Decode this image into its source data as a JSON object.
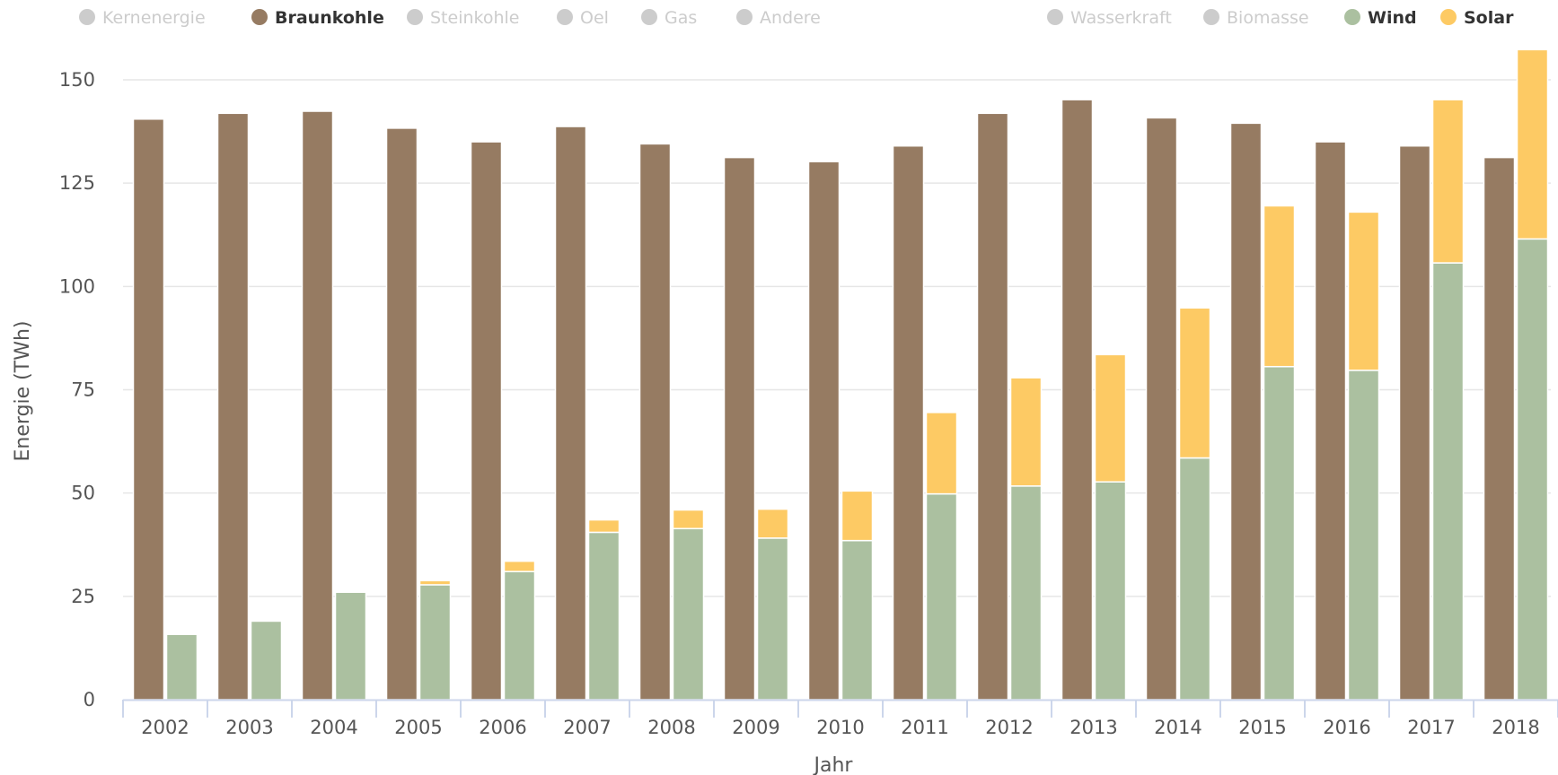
{
  "legend": [
    {
      "label": "Kernenergie",
      "active": false,
      "color": "#cccccc"
    },
    {
      "label": "Braunkohle",
      "active": true,
      "color": "#967b62"
    },
    {
      "label": "Steinkohle",
      "active": false,
      "color": "#cccccc"
    },
    {
      "label": "Oel",
      "active": false,
      "color": "#cccccc"
    },
    {
      "label": "Gas",
      "active": false,
      "color": "#cccccc"
    },
    {
      "label": "Andere",
      "active": false,
      "color": "#cccccc"
    },
    {
      "label": "Wasserkraft",
      "active": false,
      "color": "#cccccc"
    },
    {
      "label": "Biomasse",
      "active": false,
      "color": "#cccccc"
    },
    {
      "label": "Wind",
      "active": true,
      "color": "#abc0a0"
    },
    {
      "label": "Solar",
      "active": true,
      "color": "#fdca64"
    }
  ],
  "chart_data": {
    "type": "bar",
    "title": "",
    "xlabel": "Jahr",
    "ylabel": "Energie (TWh)",
    "ylim": [
      0,
      150
    ],
    "yticks": [
      0,
      25,
      50,
      75,
      100,
      125,
      150
    ],
    "grid": true,
    "legend_position": "top",
    "categories": [
      "2002",
      "2003",
      "2004",
      "2005",
      "2006",
      "2007",
      "2008",
      "2009",
      "2010",
      "2011",
      "2012",
      "2013",
      "2014",
      "2015",
      "2016",
      "2017",
      "2018"
    ],
    "series": [
      {
        "name": "Braunkohle",
        "color": "#967b62",
        "stack": "fossil",
        "values": [
          140.5,
          141.9,
          142.4,
          138.3,
          135.0,
          138.7,
          134.5,
          131.2,
          130.2,
          134.0,
          141.9,
          145.2,
          140.8,
          139.5,
          135.0,
          134.0,
          131.2
        ]
      },
      {
        "name": "Wind",
        "color": "#abc0a0",
        "stack": "renewable",
        "values": [
          15.8,
          19.0,
          26.0,
          27.8,
          31.0,
          40.5,
          41.4,
          39.1,
          38.5,
          49.8,
          51.7,
          52.7,
          58.5,
          80.6,
          79.7,
          105.7,
          111.5
        ]
      },
      {
        "name": "Solar",
        "color": "#fdca64",
        "stack": "renewable",
        "values": [
          0.0,
          0.0,
          0.0,
          1.0,
          2.5,
          3.0,
          4.5,
          7.0,
          12.0,
          19.7,
          26.2,
          30.8,
          36.3,
          38.9,
          38.3,
          39.5,
          45.8
        ]
      }
    ]
  }
}
